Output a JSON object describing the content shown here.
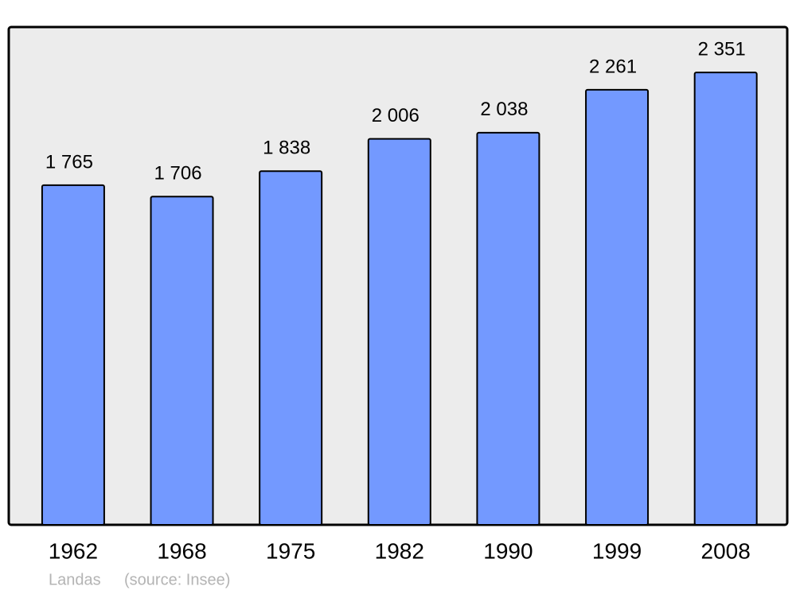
{
  "chart_data": {
    "type": "bar",
    "categories": [
      "1962",
      "1968",
      "1975",
      "1982",
      "1990",
      "1999",
      "2008"
    ],
    "values": [
      1765,
      1706,
      1838,
      2006,
      2038,
      2261,
      2351
    ],
    "value_labels": [
      "1 765",
      "1 706",
      "1 838",
      "2 006",
      "2 038",
      "2 261",
      "2 351"
    ],
    "color": "#7399ff",
    "ylim": [
      0,
      2583
    ],
    "caption": "Landas",
    "source": "(source: Insee)"
  }
}
